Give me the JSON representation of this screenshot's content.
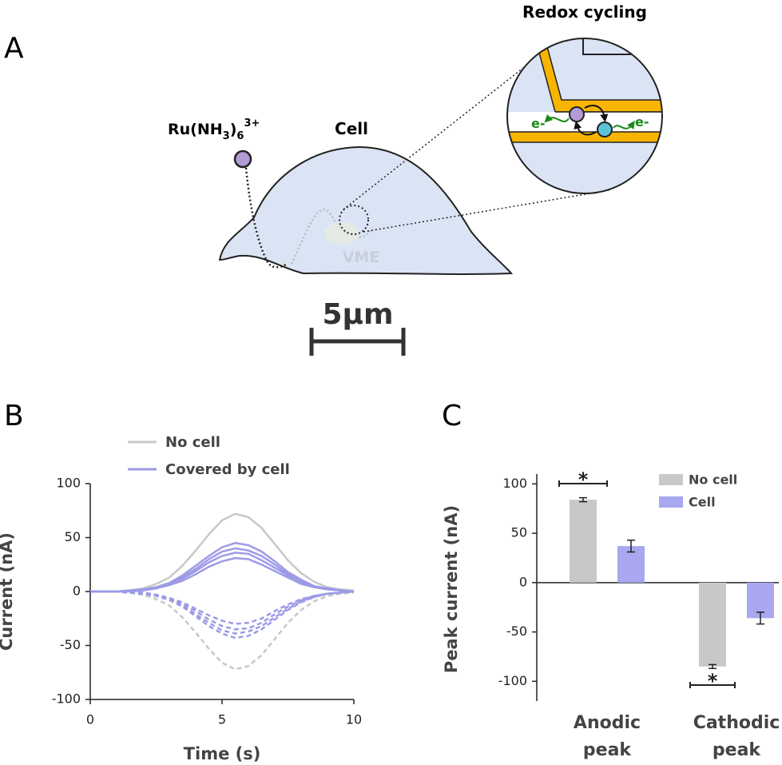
{
  "diagram": {
    "panel_a": "A",
    "title": "Redox cycling",
    "cell": "Cell",
    "vme": "VME",
    "scale_bar": "5μm",
    "electron": "e-",
    "ru_label": [
      "Ru(NH",
      "3",
      ")",
      "6",
      "3+"
    ]
  },
  "chart_data": [
    {
      "type": "line",
      "panel": "B",
      "xlabel": "Time (s)",
      "ylabel": "Current (nA)",
      "x": [
        0,
        0.5,
        1,
        1.5,
        2,
        2.5,
        3,
        3.5,
        4,
        4.5,
        5,
        5.5,
        6,
        6.5,
        7,
        7.5,
        8,
        8.5,
        9,
        9.5,
        10
      ],
      "xlim": [
        0,
        10
      ],
      "xticks": [
        0,
        5,
        10
      ],
      "ylim": [
        -100,
        100
      ],
      "yticks": [
        -100,
        -50,
        0,
        50,
        100
      ],
      "legend": "top",
      "series": [
        {
          "name": "No cell",
          "color": "#c8c8c8",
          "dashed": false,
          "values": [
            0,
            0,
            0,
            1,
            3,
            7,
            13,
            24,
            38,
            53,
            66,
            72,
            69,
            59,
            44,
            29,
            17,
            9,
            4,
            2,
            1
          ]
        },
        {
          "name": "No cell",
          "color": "#c8c8c8",
          "dashed": true,
          "values": [
            0,
            0,
            0,
            -1,
            -3,
            -7,
            -13,
            -24,
            -38,
            -53,
            -66,
            -72,
            -69,
            -59,
            -44,
            -29,
            -17,
            -9,
            -4,
            -2,
            -1
          ]
        },
        {
          "name": "Covered by cell",
          "color": "#9d9be6",
          "dashed": false,
          "values": [
            0,
            0,
            0,
            1,
            2,
            4,
            8,
            15,
            24,
            33,
            41,
            45,
            43,
            37,
            28,
            18,
            11,
            5,
            3,
            1,
            0
          ]
        },
        {
          "name": "Covered by cell",
          "color": "#9d9be6",
          "dashed": false,
          "values": [
            0,
            0,
            0,
            1,
            2,
            4,
            7,
            13,
            21,
            30,
            37,
            40,
            38,
            33,
            25,
            16,
            9,
            5,
            2,
            1,
            0
          ]
        },
        {
          "name": "Covered by cell",
          "color": "#9d9be6",
          "dashed": false,
          "values": [
            0,
            0,
            0,
            1,
            1,
            3,
            7,
            12,
            19,
            27,
            33,
            36,
            35,
            29,
            22,
            15,
            9,
            4,
            2,
            1,
            0
          ]
        },
        {
          "name": "Covered by cell",
          "color": "#9d9be6",
          "dashed": false,
          "values": [
            0,
            0,
            0,
            0,
            1,
            3,
            6,
            10,
            16,
            23,
            28,
            31,
            30,
            25,
            19,
            13,
            7,
            4,
            2,
            1,
            0
          ]
        },
        {
          "name": "Covered by cell",
          "color": "#9d9be6",
          "dashed": true,
          "values": [
            0,
            0,
            0,
            0,
            -1,
            -3,
            -6,
            -10,
            -16,
            -22,
            -27,
            -30,
            -29,
            -25,
            -18,
            -12,
            -7,
            -4,
            -2,
            -1,
            0
          ]
        },
        {
          "name": "Covered by cell",
          "color": "#9d9be6",
          "dashed": true,
          "values": [
            0,
            0,
            0,
            -1,
            -1,
            -3,
            -6,
            -12,
            -18,
            -26,
            -32,
            -35,
            -34,
            -29,
            -21,
            -14,
            -8,
            -4,
            -2,
            -1,
            0
          ]
        },
        {
          "name": "Covered by cell",
          "color": "#9d9be6",
          "dashed": true,
          "values": [
            0,
            0,
            0,
            -1,
            -2,
            -4,
            -7,
            -13,
            -21,
            -29,
            -36,
            -39,
            -37,
            -32,
            -24,
            -16,
            -9,
            -5,
            -2,
            -1,
            0
          ]
        },
        {
          "name": "Covered by cell",
          "color": "#9d9be6",
          "dashed": true,
          "values": [
            0,
            0,
            0,
            -1,
            -2,
            -4,
            -8,
            -14,
            -23,
            -32,
            -39,
            -43,
            -41,
            -35,
            -26,
            -17,
            -10,
            -5,
            -2,
            -1,
            0
          ]
        }
      ]
    },
    {
      "type": "bar",
      "panel": "C",
      "ylabel": "Peak current (nA)",
      "categories": [
        "Anodic peak",
        "Cathodic peak"
      ],
      "ylim": [
        -120,
        110
      ],
      "yticks": [
        -100,
        -50,
        0,
        50,
        100
      ],
      "legend": "upper right",
      "series": [
        {
          "name": "No cell",
          "color": "#c8c8c8",
          "values": [
            84,
            -85
          ],
          "errors": [
            2,
            2
          ]
        },
        {
          "name": "Cell",
          "color": "#a9a7ef",
          "values": [
            37,
            -36
          ],
          "errors": [
            6,
            6
          ]
        }
      ],
      "annotations": [
        "*",
        "*"
      ]
    }
  ]
}
